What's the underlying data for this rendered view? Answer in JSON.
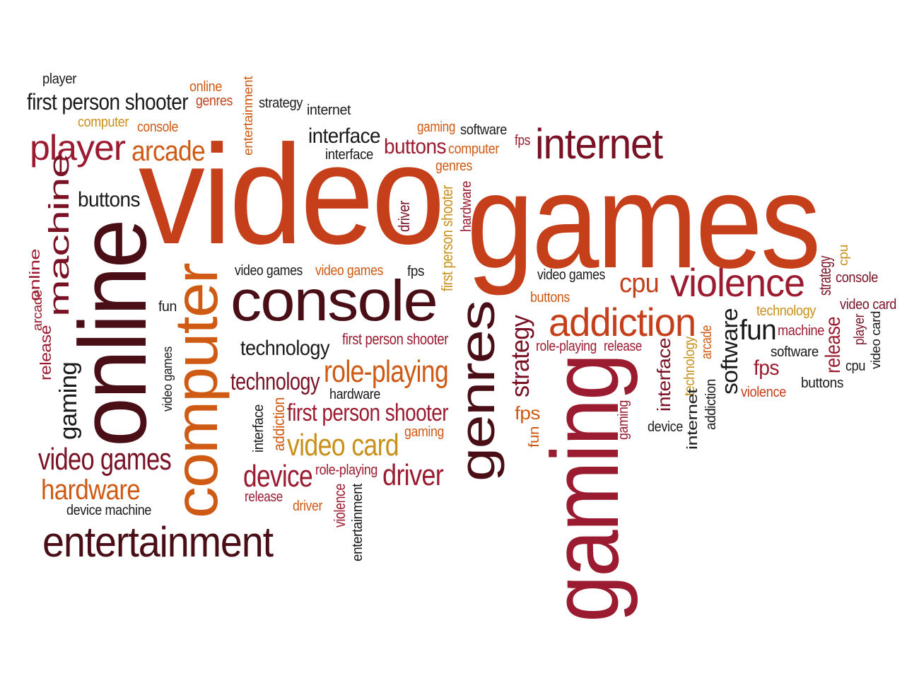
{
  "colors": {
    "dark": "#4a0e17",
    "maroon": "#7a1226",
    "crimson": "#9b1b30",
    "orange_red": "#c43f1a",
    "orange": "#cf5a14",
    "gold": "#c9901a",
    "black": "#1a1a1a"
  },
  "words": [
    {
      "id": "w0",
      "text": "player",
      "color": "black"
    },
    {
      "id": "w1",
      "text": "first person shooter",
      "color": "black"
    },
    {
      "id": "w2",
      "text": "online",
      "color": "orange"
    },
    {
      "id": "w3",
      "text": "genres",
      "color": "orange_red"
    },
    {
      "id": "w4",
      "text": "entertainment",
      "color": "orange"
    },
    {
      "id": "w5",
      "text": "strategy",
      "color": "black"
    },
    {
      "id": "w6",
      "text": "internet",
      "color": "black"
    },
    {
      "id": "w7",
      "text": "computer",
      "color": "gold"
    },
    {
      "id": "w8",
      "text": "console",
      "color": "orange"
    },
    {
      "id": "w9",
      "text": "player",
      "color": "crimson"
    },
    {
      "id": "w10",
      "text": "arcade",
      "color": "orange"
    },
    {
      "id": "w11",
      "text": "interface",
      "color": "black"
    },
    {
      "id": "w12",
      "text": "interface",
      "color": "black"
    },
    {
      "id": "w13",
      "text": "gaming",
      "color": "orange"
    },
    {
      "id": "w14",
      "text": "software",
      "color": "black"
    },
    {
      "id": "w15",
      "text": "buttons",
      "color": "crimson"
    },
    {
      "id": "w16",
      "text": "computer",
      "color": "orange"
    },
    {
      "id": "w17",
      "text": "genres",
      "color": "orange"
    },
    {
      "id": "w18",
      "text": "fps",
      "color": "crimson"
    },
    {
      "id": "w19",
      "text": "internet",
      "color": "maroon"
    },
    {
      "id": "w20",
      "text": "video",
      "color": "orange_red"
    },
    {
      "id": "w21",
      "text": "games",
      "color": "orange_red"
    },
    {
      "id": "w22",
      "text": "gaming",
      "color": "crimson"
    },
    {
      "id": "w23",
      "text": "buttons",
      "color": "black"
    },
    {
      "id": "w24",
      "text": "machine",
      "color": "maroon"
    },
    {
      "id": "w25",
      "text": "online",
      "color": "dark"
    },
    {
      "id": "w26",
      "text": "computer",
      "color": "orange"
    },
    {
      "id": "w27",
      "text": "driver",
      "color": "maroon"
    },
    {
      "id": "w28",
      "text": "first person shooter",
      "color": "gold"
    },
    {
      "id": "w29",
      "text": "hardware",
      "color": "crimson"
    },
    {
      "id": "w30",
      "text": "video games",
      "color": "black"
    },
    {
      "id": "w31",
      "text": "video games",
      "color": "orange"
    },
    {
      "id": "w32",
      "text": "fps",
      "color": "black"
    },
    {
      "id": "w33",
      "text": "console",
      "color": "dark"
    },
    {
      "id": "w34",
      "text": "fun",
      "color": "black"
    },
    {
      "id": "w35",
      "text": "online",
      "color": "crimson"
    },
    {
      "id": "w36",
      "text": "arcade",
      "color": "crimson"
    },
    {
      "id": "w37",
      "text": "release",
      "color": "crimson"
    },
    {
      "id": "w38",
      "text": "gaming",
      "color": "black"
    },
    {
      "id": "w39",
      "text": "video games",
      "color": "black"
    },
    {
      "id": "w40",
      "text": "video games",
      "color": "maroon"
    },
    {
      "id": "w41",
      "text": "hardware",
      "color": "orange"
    },
    {
      "id": "w42",
      "text": "device machine",
      "color": "black"
    },
    {
      "id": "w43",
      "text": "entertainment",
      "color": "dark"
    },
    {
      "id": "w44",
      "text": "technology",
      "color": "black"
    },
    {
      "id": "w45",
      "text": "technology",
      "color": "maroon"
    },
    {
      "id": "w46",
      "text": "first person shooter",
      "color": "crimson"
    },
    {
      "id": "w47",
      "text": "role-playing",
      "color": "orange"
    },
    {
      "id": "w48",
      "text": "hardware",
      "color": "black"
    },
    {
      "id": "w49",
      "text": "first person shooter",
      "color": "crimson"
    },
    {
      "id": "w50",
      "text": "interface",
      "color": "black"
    },
    {
      "id": "w51",
      "text": "addiction",
      "color": "orange"
    },
    {
      "id": "w52",
      "text": "video card",
      "color": "gold"
    },
    {
      "id": "w53",
      "text": "gaming",
      "color": "orange"
    },
    {
      "id": "w54",
      "text": "device",
      "color": "crimson"
    },
    {
      "id": "w55",
      "text": "role-playing",
      "color": "crimson"
    },
    {
      "id": "w56",
      "text": "driver",
      "color": "crimson"
    },
    {
      "id": "w57",
      "text": "release",
      "color": "crimson"
    },
    {
      "id": "w58",
      "text": "driver",
      "color": "orange"
    },
    {
      "id": "w59",
      "text": "violence",
      "color": "crimson"
    },
    {
      "id": "w60",
      "text": "entertainment",
      "color": "black"
    },
    {
      "id": "w61",
      "text": "genres",
      "color": "dark"
    },
    {
      "id": "w62",
      "text": "strategy",
      "color": "maroon"
    },
    {
      "id": "w63",
      "text": "fps",
      "color": "orange"
    },
    {
      "id": "w64",
      "text": "fun",
      "color": "orange"
    },
    {
      "id": "w65",
      "text": "video games",
      "color": "black"
    },
    {
      "id": "w66",
      "text": "buttons",
      "color": "orange"
    },
    {
      "id": "w67",
      "text": "cpu",
      "color": "orange_red"
    },
    {
      "id": "w68",
      "text": "violence",
      "color": "crimson"
    },
    {
      "id": "w69",
      "text": "addiction",
      "color": "orange_red"
    },
    {
      "id": "w70",
      "text": "role-playing",
      "color": "crimson"
    },
    {
      "id": "w71",
      "text": "release",
      "color": "crimson"
    },
    {
      "id": "w72",
      "text": "interface",
      "color": "maroon"
    },
    {
      "id": "w73",
      "text": "gaming",
      "color": "crimson"
    },
    {
      "id": "w74",
      "text": "technology",
      "color": "gold"
    },
    {
      "id": "w75",
      "text": "device",
      "color": "black"
    },
    {
      "id": "w76",
      "text": "internet",
      "color": "black"
    },
    {
      "id": "w77",
      "text": "addiction",
      "color": "black"
    },
    {
      "id": "w78",
      "text": "arcade",
      "color": "orange"
    },
    {
      "id": "w79",
      "text": "software",
      "color": "black"
    },
    {
      "id": "w80",
      "text": "fun",
      "color": "black"
    },
    {
      "id": "w81",
      "text": "technology",
      "color": "gold"
    },
    {
      "id": "w82",
      "text": "machine",
      "color": "crimson"
    },
    {
      "id": "w83",
      "text": "fps",
      "color": "crimson"
    },
    {
      "id": "w84",
      "text": "violence",
      "color": "orange_red"
    },
    {
      "id": "w85",
      "text": "software",
      "color": "black"
    },
    {
      "id": "w86",
      "text": "release",
      "color": "crimson"
    },
    {
      "id": "w87",
      "text": "buttons",
      "color": "black"
    },
    {
      "id": "w88",
      "text": "strategy",
      "color": "maroon"
    },
    {
      "id": "w89",
      "text": "cpu",
      "color": "gold"
    },
    {
      "id": "w90",
      "text": "console",
      "color": "maroon"
    },
    {
      "id": "w91",
      "text": "player",
      "color": "maroon"
    },
    {
      "id": "w92",
      "text": "video card",
      "color": "maroon"
    },
    {
      "id": "w93",
      "text": "video card",
      "color": "black"
    },
    {
      "id": "w94",
      "text": "cpu",
      "color": "black"
    }
  ]
}
